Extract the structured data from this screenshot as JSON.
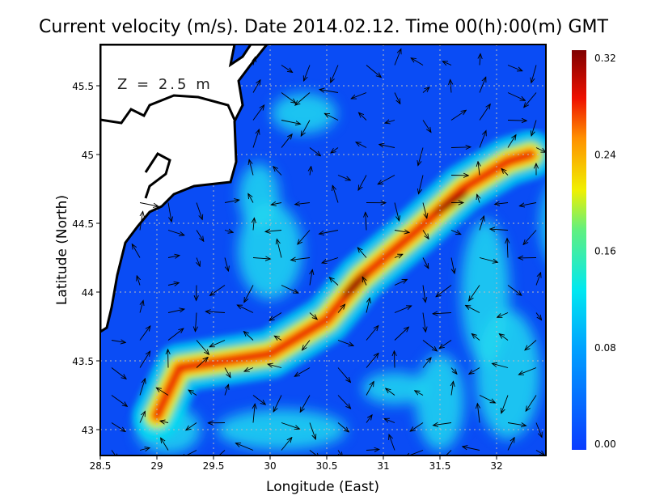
{
  "chart_data": {
    "type": "heatmap",
    "title": "Current velocity (m/s). Date 2014.02.12. Time 00(h):00(m) GMT",
    "xlabel": "Longitude (East)",
    "ylabel": "Latitude (North)",
    "annotation": "Z = 2.5 m",
    "xlim": [
      28.5,
      32.95
    ],
    "ylim": [
      42.81,
      45.8
    ],
    "xticks": [
      "28.5",
      "29",
      "29.5",
      "30",
      "30.5",
      "31",
      "31.5",
      "32"
    ],
    "yticks": [
      "43",
      "43.5",
      "44",
      "44.5",
      "45",
      "45.5"
    ],
    "grid": true,
    "colorbar": {
      "min": 0.0,
      "max": 0.32,
      "labels": [
        "0.32",
        "0.24",
        "0.16",
        "0.08",
        "0.00"
      ]
    },
    "jet_axis": [
      [
        29.0,
        43.1
      ],
      [
        29.2,
        43.45
      ],
      [
        29.6,
        43.5
      ],
      [
        30.0,
        43.55
      ],
      [
        30.5,
        43.8
      ],
      [
        30.8,
        44.1
      ],
      [
        31.3,
        44.45
      ],
      [
        31.7,
        44.75
      ],
      [
        32.1,
        44.95
      ],
      [
        32.3,
        45.0
      ]
    ],
    "jet_max_speed": 0.32
  },
  "colors": {
    "low": "#0a3cff",
    "mid": "#00e5ff",
    "high": "#ffee00",
    "peak": "#8b0000"
  }
}
